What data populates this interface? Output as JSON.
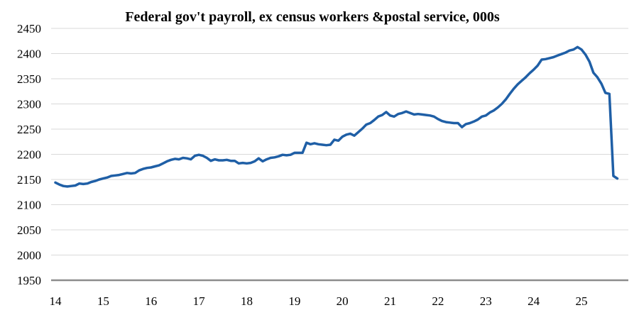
{
  "chart_data": {
    "type": "line",
    "title": "Federal gov't payroll, ex census workers &postal service, 000s",
    "xlabel": "",
    "ylabel": "",
    "xlim": [
      14,
      25.9
    ],
    "ylim": [
      1950,
      2450
    ],
    "yticks": [
      1950,
      2000,
      2050,
      2100,
      2150,
      2200,
      2250,
      2300,
      2350,
      2400,
      2450
    ],
    "xticks": [
      14,
      15,
      16,
      17,
      18,
      19,
      20,
      21,
      22,
      23,
      24,
      25
    ],
    "xtick_labels": [
      "14",
      "15",
      "16",
      "17",
      "18",
      "19",
      "20",
      "21",
      "22",
      "23",
      "24",
      "25"
    ],
    "grid": "horizontal",
    "legend": "none",
    "series_color": "#1f5fa6",
    "axis_color": "#8c8c8c",
    "gridline_color": "#d9d9d9",
    "series": [
      {
        "x": [
          14.0,
          14.083,
          14.167,
          14.25,
          14.333,
          14.417,
          14.5,
          14.583,
          14.667,
          14.75,
          14.833,
          14.917,
          15.0,
          15.083,
          15.167,
          15.25,
          15.333,
          15.417,
          15.5,
          15.583,
          15.667,
          15.75,
          15.833,
          15.917,
          16.0,
          16.083,
          16.167,
          16.25,
          16.333,
          16.417,
          16.5,
          16.583,
          16.667,
          16.75,
          16.833,
          16.917,
          17.0,
          17.083,
          17.167,
          17.25,
          17.333,
          17.417,
          17.5,
          17.583,
          17.667,
          17.75,
          17.833,
          17.917,
          18.0,
          18.083,
          18.167,
          18.25,
          18.333,
          18.417,
          18.5,
          18.583,
          18.667,
          18.75,
          18.833,
          18.917,
          19.0,
          19.083,
          19.167,
          19.25,
          19.333,
          19.417,
          19.5,
          19.583,
          19.667,
          19.75,
          19.833,
          19.917,
          20.0,
          20.083,
          20.167,
          20.25,
          20.333,
          20.417,
          20.5,
          20.583,
          20.667,
          20.75,
          20.833,
          20.917,
          21.0,
          21.083,
          21.167,
          21.25,
          21.333,
          21.417,
          21.5,
          21.583,
          21.667,
          21.75,
          21.833,
          21.917,
          22.0,
          22.083,
          22.167,
          22.25,
          22.333,
          22.417,
          22.5,
          22.583,
          22.667,
          22.75,
          22.833,
          22.917,
          23.0,
          23.083,
          23.167,
          23.25,
          23.333,
          23.417,
          23.5,
          23.583,
          23.667,
          23.75,
          23.833,
          23.917,
          24.0,
          24.083,
          24.167,
          24.25,
          24.333,
          24.417,
          24.5,
          24.583,
          24.667,
          24.75,
          24.833,
          24.917,
          25.0,
          25.083,
          25.167,
          25.25,
          25.333,
          25.417,
          25.5,
          25.583,
          25.667,
          25.75
        ],
        "values": [
          2144,
          2140,
          2137,
          2136,
          2137,
          2138,
          2142,
          2141,
          2142,
          2145,
          2147,
          2150,
          2152,
          2154,
          2157,
          2158,
          2159,
          2161,
          2163,
          2162,
          2163,
          2168,
          2171,
          2173,
          2174,
          2176,
          2178,
          2182,
          2186,
          2189,
          2191,
          2190,
          2193,
          2192,
          2190,
          2197,
          2199,
          2197,
          2193,
          2187,
          2190,
          2188,
          2188,
          2189,
          2187,
          2187,
          2182,
          2183,
          2182,
          2183,
          2186,
          2192,
          2186,
          2190,
          2193,
          2194,
          2196,
          2199,
          2198,
          2199,
          2203,
          2203,
          2203,
          2223,
          2220,
          2222,
          2220,
          2219,
          2218,
          2219,
          2229,
          2227,
          2235,
          2239,
          2241,
          2237,
          2244,
          2251,
          2259,
          2262,
          2268,
          2275,
          2278,
          2284,
          2277,
          2275,
          2280,
          2282,
          2285,
          2282,
          2279,
          2280,
          2279,
          2278,
          2277,
          2275,
          2270,
          2266,
          2264,
          2263,
          2262,
          2262,
          2254,
          2260,
          2262,
          2265,
          2269,
          2275,
          2277,
          2283,
          2287,
          2293,
          2300,
          2309,
          2320,
          2330,
          2339,
          2346,
          2353,
          2361,
          2368,
          2376,
          2388,
          2389,
          2391,
          2393,
          2396,
          2399,
          2402,
          2406,
          2408,
          2413,
          2408,
          2398,
          2384,
          2362,
          2353,
          2340,
          2322,
          2320,
          2157,
          2152
        ]
      }
    ]
  }
}
